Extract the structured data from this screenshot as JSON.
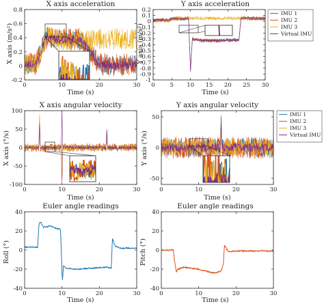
{
  "colors": {
    "imu1": "#1f77b4",
    "imu2": "#d95319",
    "imu3": "#edb120",
    "virtual": "#7e2f8e"
  },
  "chart_data": [
    {
      "type": "line",
      "title": "X axis acceleration",
      "xlabel": "Time (s)",
      "ylabel": "X axis (m/s²)",
      "xlim": [
        0,
        30
      ],
      "ylim": [
        -0.2,
        0.8
      ],
      "xticks": [
        "0",
        "10",
        "20",
        "30"
      ],
      "yticks": [
        "-0.2",
        "0",
        "0.2",
        "0.4",
        "0.6",
        "0.8"
      ],
      "xtick_values": [
        0,
        10,
        20,
        30
      ],
      "ytick_values": [
        -0.2,
        0,
        0.2,
        0.4,
        0.6,
        0.8
      ],
      "grid": false,
      "legend": [],
      "inset_zoom": true,
      "series": [
        {
          "key": "imu1",
          "x": [
            0,
            3,
            5,
            6,
            7,
            8,
            10,
            15,
            20,
            25,
            30
          ],
          "y": [
            0.02,
            0.03,
            0.3,
            0.42,
            0.4,
            0.38,
            0.37,
            0.38,
            0.02,
            0.01,
            0.02
          ],
          "noise": 0.14
        },
        {
          "key": "imu2",
          "x": [
            0,
            3,
            5,
            6,
            7,
            8,
            10,
            15,
            20,
            25,
            30
          ],
          "y": [
            0.02,
            0.03,
            0.3,
            0.42,
            0.4,
            0.38,
            0.37,
            0.38,
            0.02,
            0.01,
            0.02
          ],
          "noise": 0.16
        },
        {
          "key": "imu3",
          "x": [
            0,
            3,
            5,
            6,
            7,
            8,
            10,
            15,
            20,
            25,
            30
          ],
          "y": [
            0.02,
            0.03,
            0.3,
            0.42,
            0.4,
            0.38,
            0.37,
            0.38,
            0.38,
            0.38,
            0.38
          ],
          "noise": 0.15
        },
        {
          "key": "virtual",
          "x": [
            0,
            3,
            5,
            6,
            7,
            8,
            10,
            15,
            20,
            25,
            30
          ],
          "y": [
            0.02,
            0.03,
            0.3,
            0.42,
            0.4,
            0.38,
            0.37,
            0.38,
            0.02,
            0.01,
            0.02
          ],
          "noise": 0.06
        }
      ]
    },
    {
      "type": "line",
      "title": "Y axis acceleration",
      "xlabel": "Time (s)",
      "ylabel": "Y axis (m/s²)",
      "xlim": [
        0,
        30
      ],
      "ylim": [
        -1,
        0.2
      ],
      "xticks": [
        "0",
        "5",
        "10",
        "15",
        "20",
        "25",
        "30"
      ],
      "yticks": [
        "-1",
        "-0.9",
        "-0.8",
        "-0.7",
        "-0.6",
        "-0.5",
        "-0.4",
        "-0.3",
        "-0.2",
        "-0.1",
        "0",
        "0.1",
        "0.2"
      ],
      "xtick_values": [
        0,
        5,
        10,
        15,
        20,
        25,
        30
      ],
      "ytick_values": [
        -1,
        -0.9,
        -0.8,
        -0.7,
        -0.6,
        -0.5,
        -0.4,
        -0.3,
        -0.2,
        -0.1,
        0,
        0.1,
        0.2
      ],
      "grid": false,
      "legend": [
        "IMU 1",
        "IMU 2",
        "IMU 3",
        "Virtual IMU"
      ],
      "legend_position": "top-right",
      "inset_zoom": true,
      "series": [
        {
          "key": "imu1",
          "x": [
            0,
            4,
            5,
            6,
            8,
            9.5,
            10,
            10.5,
            12,
            15,
            18,
            20,
            23,
            23.5,
            24,
            26,
            30
          ],
          "y": [
            0.02,
            0.02,
            0.04,
            0.05,
            0.04,
            0.05,
            -0.85,
            -0.3,
            -0.32,
            -0.33,
            -0.33,
            -0.32,
            -0.32,
            0.05,
            0.06,
            0.05,
            0.05
          ],
          "noise": 0.03
        },
        {
          "key": "imu2",
          "x": [
            0,
            4,
            5,
            6,
            8,
            9.5,
            10,
            10.5,
            12,
            15,
            18,
            20,
            23,
            23.5,
            24,
            26,
            30
          ],
          "y": [
            0.02,
            0.02,
            0.04,
            0.05,
            0.04,
            0.05,
            -0.85,
            -0.3,
            -0.32,
            -0.33,
            -0.33,
            -0.32,
            -0.32,
            0.05,
            0.06,
            0.05,
            0.05
          ],
          "noise": 0.035
        },
        {
          "key": "imu3",
          "x": [
            0,
            4,
            5,
            6,
            8,
            9.5,
            10,
            15,
            20,
            25,
            30
          ],
          "y": [
            0.0,
            0.0,
            0.04,
            0.06,
            0.06,
            0.06,
            0.05,
            0.05,
            0.05,
            0.05,
            0.05
          ],
          "noise": 0.03
        },
        {
          "key": "virtual",
          "x": [
            0,
            4,
            5,
            6,
            8,
            9.5,
            10,
            10.5,
            12,
            15,
            18,
            20,
            23,
            23.5,
            24,
            26,
            30
          ],
          "y": [
            0.02,
            0.02,
            0.04,
            0.05,
            0.04,
            0.05,
            -0.85,
            -0.3,
            -0.32,
            -0.33,
            -0.33,
            -0.32,
            -0.32,
            0.05,
            0.06,
            0.05,
            0.05
          ],
          "noise": 0.015
        }
      ]
    },
    {
      "type": "line",
      "title": "X axis angular velocity",
      "xlabel": "Time (s)",
      "ylabel": "X axis (°/s)",
      "xlim": [
        0,
        30
      ],
      "ylim": [
        -100,
        100
      ],
      "xticks": [
        "0",
        "10",
        "20",
        "30"
      ],
      "yticks": [
        "-100",
        "-50",
        "0",
        "50",
        "100"
      ],
      "xtick_values": [
        0,
        10,
        20,
        30
      ],
      "ytick_values": [
        -100,
        -50,
        0,
        50,
        100
      ],
      "grid": false,
      "legend": [],
      "inset_zoom": true,
      "series": [
        {
          "key": "imu1",
          "x": [
            0,
            3.8,
            4,
            4.2,
            6,
            9.8,
            10,
            10.2,
            15,
            21.8,
            22,
            22.2,
            26,
            30
          ],
          "y": [
            0,
            0,
            60,
            0,
            0,
            0,
            -90,
            0,
            0,
            0,
            45,
            0,
            0,
            0
          ],
          "noise": 7
        },
        {
          "key": "imu2",
          "x": [
            0,
            3.8,
            4,
            4.2,
            6,
            9.8,
            10,
            10.2,
            15,
            21.8,
            22,
            22.2,
            26,
            30
          ],
          "y": [
            0,
            0,
            80,
            0,
            0,
            0,
            -100,
            0,
            0,
            0,
            50,
            0,
            0,
            0
          ],
          "noise": 11
        },
        {
          "key": "imu3",
          "x": [
            0,
            3.8,
            4,
            4.2,
            6,
            9.8,
            10,
            10.2,
            15,
            21.8,
            22,
            22.2,
            26,
            30
          ],
          "y": [
            0,
            0,
            95,
            0,
            0,
            0,
            0,
            0,
            0,
            0,
            0,
            0,
            0,
            0
          ],
          "noise": 9
        },
        {
          "key": "virtual",
          "x": [
            0,
            3.8,
            4,
            4.2,
            6,
            9.8,
            10,
            10.2,
            15,
            21.8,
            22,
            22.2,
            26,
            30
          ],
          "y": [
            0,
            0,
            60,
            0,
            0,
            0,
            100,
            0,
            0,
            0,
            50,
            0,
            0,
            0
          ],
          "noise": 4
        }
      ]
    },
    {
      "type": "line",
      "title": "Y axis angular velocity",
      "xlabel": "Time (s)",
      "ylabel": "Y axis (°/s)",
      "xlim": [
        0,
        30
      ],
      "ylim": [
        -60,
        60
      ],
      "xticks": [
        "0",
        "10",
        "20",
        "30"
      ],
      "yticks": [
        "-50",
        "0",
        "50"
      ],
      "xtick_values": [
        0,
        10,
        20,
        30
      ],
      "ytick_values": [
        -50,
        0,
        50
      ],
      "grid": false,
      "legend": [
        "IMU 1",
        "IMU 2",
        "IMU 3",
        "Virtual IMU"
      ],
      "legend_position": "top-right",
      "inset_zoom": true,
      "series": [
        {
          "key": "imu1",
          "x": [
            0,
            4,
            10,
            15.8,
            16,
            16.2,
            22,
            30
          ],
          "y": [
            0,
            0,
            0,
            0,
            52,
            0,
            0,
            0
          ],
          "noise": 16
        },
        {
          "key": "imu2",
          "x": [
            0,
            4,
            10,
            15.8,
            16,
            16.2,
            22,
            30
          ],
          "y": [
            0,
            0,
            0,
            0,
            45,
            0,
            0,
            0
          ],
          "noise": 18
        },
        {
          "key": "imu3",
          "x": [
            0,
            4,
            10,
            15.8,
            16,
            16.2,
            22,
            30
          ],
          "y": [
            0,
            0,
            0,
            0,
            30,
            0,
            0,
            0
          ],
          "noise": 14
        },
        {
          "key": "virtual",
          "x": [
            0,
            4,
            10,
            15.8,
            16,
            16.2,
            22,
            30
          ],
          "y": [
            0,
            0,
            0,
            0,
            40,
            0,
            0,
            0
          ],
          "noise": 7
        }
      ]
    },
    {
      "type": "line",
      "title": "Euler angle readings",
      "xlabel": "Time (s)",
      "ylabel": "Roll (°)",
      "xlim": [
        0,
        30
      ],
      "ylim": [
        -40,
        40
      ],
      "xticks": [
        "0",
        "10",
        "20",
        "30"
      ],
      "yticks": [
        "-40",
        "-20",
        "0",
        "20",
        "40"
      ],
      "xtick_values": [
        0,
        10,
        20,
        30
      ],
      "ytick_values": [
        -40,
        -20,
        0,
        20,
        40
      ],
      "grid": false,
      "legend": [],
      "series": [
        {
          "key": "imu1",
          "x": [
            0,
            3.5,
            3.8,
            4.2,
            5,
            7,
            8,
            9.6,
            9.9,
            10.1,
            10.4,
            11,
            14,
            18,
            22,
            23.2,
            23.5,
            24.2,
            26,
            30
          ],
          "y": [
            3,
            3,
            26,
            30,
            24,
            25,
            23,
            22,
            -10,
            -33,
            -16,
            -19,
            -20,
            -19,
            -18,
            -19,
            12,
            4,
            2,
            2
          ],
          "noise": 0.8
        }
      ]
    },
    {
      "type": "line",
      "title": "Euler angle readings",
      "xlabel": "Time (s)",
      "ylabel": "Pitch (°)",
      "xlim": [
        0,
        30
      ],
      "ylim": [
        -40,
        40
      ],
      "xticks": [
        "0",
        "10",
        "20",
        "30"
      ],
      "yticks": [
        "-40",
        "-20",
        "0",
        "20",
        "40"
      ],
      "xtick_values": [
        0,
        10,
        20,
        30
      ],
      "ytick_values": [
        -40,
        -20,
        0,
        20,
        40
      ],
      "grid": false,
      "legend": [],
      "series": [
        {
          "key": "imu2",
          "x": [
            0,
            3.2,
            3.5,
            4,
            4.5,
            6,
            10,
            14,
            16,
            16.6,
            16.9,
            17.3,
            18,
            20,
            25,
            30
          ],
          "y": [
            0,
            0,
            -10,
            -23,
            -20,
            -18,
            -20,
            -24,
            -22,
            -15,
            6,
            2,
            -2,
            -1,
            -1,
            -1
          ],
          "noise": 0.8
        }
      ]
    }
  ]
}
